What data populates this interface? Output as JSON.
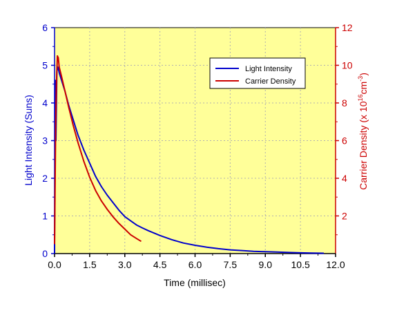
{
  "colors": {
    "plot_background": "#ffff99",
    "left_axis": "#0000cc",
    "right_axis": "#cc0000",
    "grid": "#b0b0b0"
  },
  "chart_data": {
    "type": "line",
    "title": "",
    "xlabel": "Time (millisec)",
    "ylabel_left": "Light Intensity (Suns)",
    "ylabel_right_parts": {
      "before": "Carrier Density (x 10",
      "exp1": "16",
      "mid": "cm",
      "exp2": "-3",
      "after": ")"
    },
    "xlim": [
      0,
      12
    ],
    "ylim_left": [
      0,
      6
    ],
    "ylim_right": [
      0,
      12
    ],
    "x_ticks": [
      "0.0",
      "1.5",
      "3.0",
      "4.5",
      "6.0",
      "7.5",
      "9.0",
      "10.5",
      "12.0"
    ],
    "y_left_ticks": [
      "0",
      "1",
      "2",
      "3",
      "4",
      "5",
      "6"
    ],
    "y_right_ticks": [
      "2",
      "4",
      "6",
      "8",
      "10",
      "12"
    ],
    "grid": true,
    "legend_position": "top-right",
    "series": [
      {
        "name": "Light Intensity",
        "axis": "left",
        "color": "#0000cc",
        "x": [
          0.0,
          0.03,
          0.06,
          0.1,
          0.15,
          0.2,
          0.3,
          0.45,
          0.6,
          0.8,
          1.0,
          1.25,
          1.5,
          1.75,
          2.0,
          2.25,
          2.5,
          2.75,
          3.0,
          3.25,
          3.5,
          3.75,
          4.0,
          4.5,
          5.0,
          5.5,
          6.0,
          6.5,
          7.0,
          7.5,
          8.0,
          8.5,
          9.0,
          9.5,
          10.0,
          10.5,
          11.0,
          11.5
        ],
        "y": [
          0.0,
          4.6,
          3.0,
          4.85,
          4.95,
          4.8,
          4.6,
          4.3,
          3.95,
          3.55,
          3.15,
          2.75,
          2.4,
          2.05,
          1.78,
          1.55,
          1.35,
          1.15,
          0.98,
          0.87,
          0.76,
          0.68,
          0.61,
          0.48,
          0.37,
          0.28,
          0.22,
          0.17,
          0.13,
          0.1,
          0.08,
          0.06,
          0.05,
          0.04,
          0.03,
          0.02,
          0.015,
          0.01
        ]
      },
      {
        "name": "Carrier Density",
        "axis": "right",
        "color": "#cc0000",
        "x": [
          0.0,
          0.05,
          0.08,
          0.12,
          0.16,
          0.2,
          0.3,
          0.45,
          0.6,
          0.8,
          1.0,
          1.25,
          1.5,
          1.75,
          2.0,
          2.25,
          2.5,
          2.75,
          3.0,
          3.25,
          3.5,
          3.7
        ],
        "y": [
          0.5,
          7.0,
          9.0,
          10.5,
          10.4,
          9.9,
          9.4,
          8.6,
          7.8,
          6.8,
          5.9,
          4.9,
          4.05,
          3.35,
          2.8,
          2.35,
          1.95,
          1.6,
          1.3,
          1.0,
          0.8,
          0.65
        ]
      }
    ]
  }
}
